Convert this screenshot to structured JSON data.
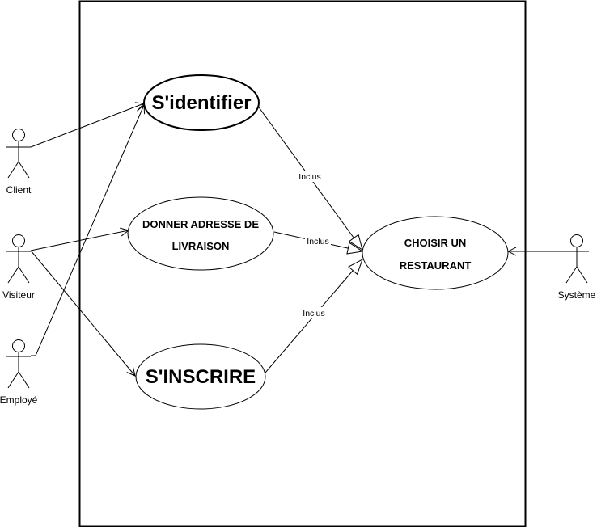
{
  "diagram": {
    "actors": {
      "client": "Client",
      "visiteur": "Visiteur",
      "employe": "Employé",
      "systeme": "Système"
    },
    "use_cases": {
      "identifier": "S'identifier",
      "adresse_line1": "DONNER ADRESSE DE",
      "adresse_line2": "LIVRAISON",
      "inscrire": "S'INSCRIRE",
      "choisir_line1": "CHOISIR UN",
      "choisir_line2": "RESTAURANT"
    },
    "relations": {
      "include_identifier": "Inclus",
      "include_adresse": "Inclus",
      "include_inscrire": "Inclus"
    }
  }
}
